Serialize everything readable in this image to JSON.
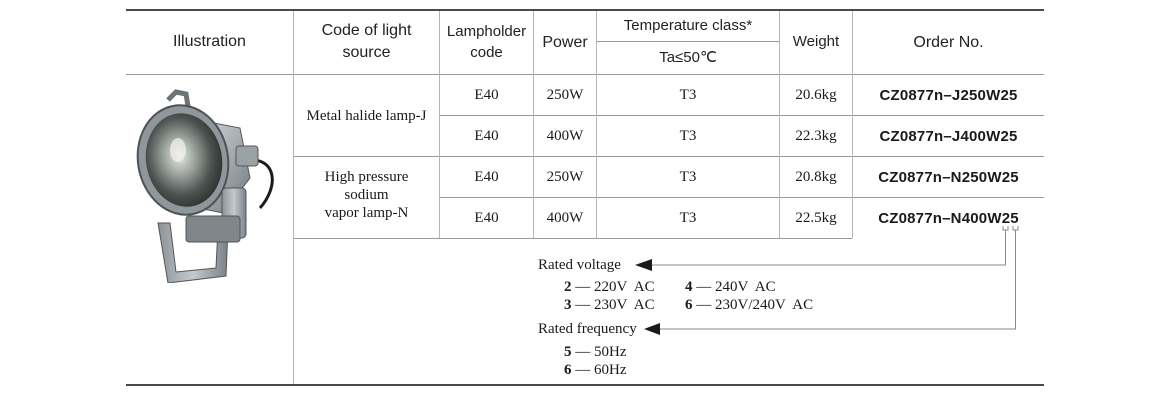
{
  "headers": {
    "illustration": "Illustration",
    "code_light_source": [
      "Code of light",
      "source"
    ],
    "lampholder_code": [
      "Lampholder",
      "code"
    ],
    "power": "Power",
    "temperature_class": "Temperature class*",
    "ta": "Ta≤50℃",
    "weight": "Weight",
    "order_no": "Order No."
  },
  "groups": [
    {
      "label": [
        "Metal halide lamp-J"
      ]
    },
    {
      "label": [
        "High pressure",
        "sodium",
        "vapor lamp-N"
      ]
    }
  ],
  "rows": [
    {
      "lampholder": "E40",
      "power": "250W",
      "temp": "T3",
      "weight": "20.6kg",
      "order": "CZ0877n–J250W25"
    },
    {
      "lampholder": "E40",
      "power": "400W",
      "temp": "T3",
      "weight": "22.3kg",
      "order": "CZ0877n–J400W25"
    },
    {
      "lampholder": "E40",
      "power": "250W",
      "temp": "T3",
      "weight": "20.8kg",
      "order": "CZ0877n–N250W25"
    },
    {
      "lampholder": "E40",
      "power": "400W",
      "temp": "T3",
      "weight": "22.5kg",
      "order": "CZ0877n–N400W25"
    }
  ],
  "notes": {
    "rated_voltage": {
      "title": "Rated voltage",
      "options": [
        {
          "code": "2",
          "sep": " — ",
          "value": "220V  AC"
        },
        {
          "code": "4",
          "sep": " — ",
          "value": "240V  AC"
        },
        {
          "code": "3",
          "sep": " — ",
          "value": "230V  AC"
        },
        {
          "code": "6",
          "sep": " — ",
          "value": "230V/240V  AC"
        }
      ]
    },
    "rated_frequency": {
      "title": "Rated frequency",
      "options": [
        {
          "code": "5",
          "sep": " — ",
          "value": "50Hz"
        },
        {
          "code": "6",
          "sep": " — ",
          "value": "60Hz"
        }
      ]
    }
  },
  "colors": {
    "rule": "#4a4a4a",
    "grid": "#9a9a9a",
    "lamp_body": "#a9b0b4"
  },
  "illustration_icon": "floodlight-lamp-icon"
}
